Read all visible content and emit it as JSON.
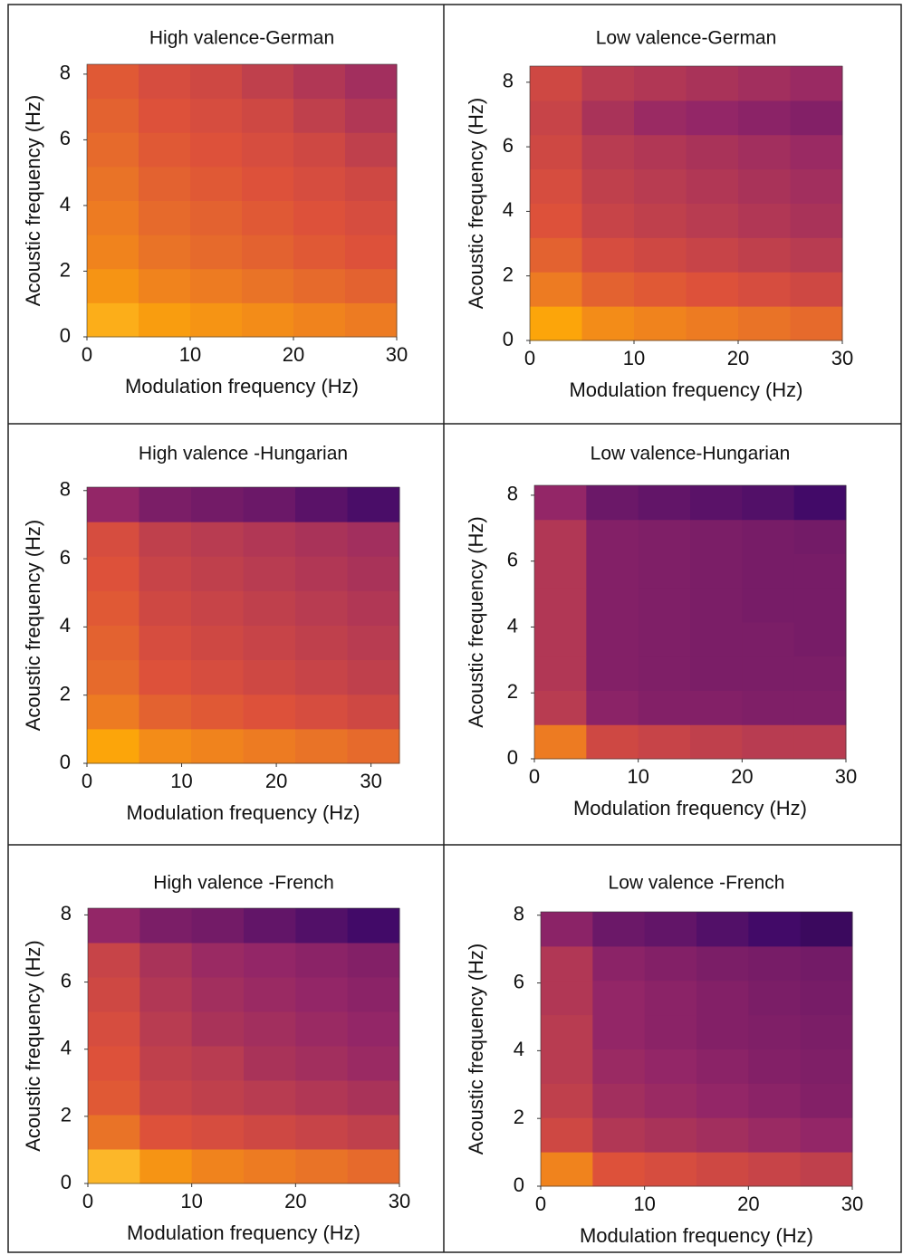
{
  "chart_data": [
    {
      "type": "heatmap",
      "title": "High valence-German",
      "xlabel": "Modulation frequency (Hz)",
      "ylabel": "Acoustic frequency (Hz)",
      "xlim": [
        0,
        30
      ],
      "ylim": [
        0,
        8.3
      ],
      "xticks": [
        0,
        10,
        20,
        30
      ],
      "yticks": [
        0,
        2,
        4,
        6,
        8
      ],
      "zlim": [
        0,
        1
      ],
      "colorscale": [
        "#000004",
        "#420a68",
        "#932667",
        "#dd513a",
        "#fca50a",
        "#fcffa4"
      ],
      "z": [
        [
          0.82,
          0.78,
          0.76,
          0.74,
          0.72,
          0.7
        ],
        [
          0.76,
          0.72,
          0.7,
          0.68,
          0.66,
          0.64
        ],
        [
          0.72,
          0.68,
          0.66,
          0.64,
          0.62,
          0.6
        ],
        [
          0.7,
          0.66,
          0.64,
          0.62,
          0.6,
          0.58
        ],
        [
          0.68,
          0.64,
          0.62,
          0.6,
          0.58,
          0.56
        ],
        [
          0.66,
          0.62,
          0.6,
          0.58,
          0.56,
          0.52
        ],
        [
          0.64,
          0.6,
          0.58,
          0.56,
          0.52,
          0.48
        ],
        [
          0.62,
          0.58,
          0.56,
          0.52,
          0.48,
          0.44
        ]
      ]
    },
    {
      "type": "heatmap",
      "title": "Low valence-German",
      "xlabel": "Modulation frequency (Hz)",
      "ylabel": "Acoustic frequency (Hz)",
      "xlim": [
        0,
        30
      ],
      "ylim": [
        0,
        8.5
      ],
      "xticks": [
        0,
        10,
        20,
        30
      ],
      "yticks": [
        0,
        2,
        4,
        6,
        8
      ],
      "zlim": [
        0,
        1
      ],
      "colorscale": [
        "#000004",
        "#420a68",
        "#932667",
        "#dd513a",
        "#fca50a",
        "#fcffa4"
      ],
      "z": [
        [
          0.8,
          0.74,
          0.72,
          0.7,
          0.68,
          0.66
        ],
        [
          0.7,
          0.64,
          0.62,
          0.6,
          0.58,
          0.56
        ],
        [
          0.64,
          0.58,
          0.56,
          0.54,
          0.52,
          0.5
        ],
        [
          0.6,
          0.54,
          0.52,
          0.5,
          0.48,
          0.46
        ],
        [
          0.58,
          0.52,
          0.5,
          0.48,
          0.46,
          0.44
        ],
        [
          0.56,
          0.5,
          0.48,
          0.46,
          0.44,
          0.42
        ],
        [
          0.54,
          0.46,
          0.42,
          0.4,
          0.38,
          0.36
        ],
        [
          0.56,
          0.5,
          0.48,
          0.46,
          0.44,
          0.42
        ]
      ]
    },
    {
      "type": "heatmap",
      "title": "High valence -Hungarian",
      "xlabel": "Modulation frequency (Hz)",
      "ylabel": "Acoustic frequency (Hz)",
      "xlim": [
        0,
        33
      ],
      "ylim": [
        0,
        8.1
      ],
      "xticks": [
        0,
        10,
        20,
        30
      ],
      "yticks": [
        0,
        2,
        4,
        6,
        8
      ],
      "zlim": [
        0,
        1
      ],
      "colorscale": [
        "#000004",
        "#420a68",
        "#932667",
        "#dd513a",
        "#fca50a",
        "#fcffa4"
      ],
      "z": [
        [
          0.8,
          0.74,
          0.72,
          0.7,
          0.68,
          0.66
        ],
        [
          0.7,
          0.64,
          0.62,
          0.6,
          0.58,
          0.56
        ],
        [
          0.66,
          0.6,
          0.58,
          0.56,
          0.54,
          0.52
        ],
        [
          0.64,
          0.58,
          0.56,
          0.54,
          0.52,
          0.5
        ],
        [
          0.62,
          0.56,
          0.54,
          0.52,
          0.5,
          0.48
        ],
        [
          0.6,
          0.54,
          0.52,
          0.5,
          0.48,
          0.46
        ],
        [
          0.58,
          0.52,
          0.5,
          0.48,
          0.46,
          0.44
        ],
        [
          0.4,
          0.34,
          0.32,
          0.3,
          0.26,
          0.22
        ]
      ]
    },
    {
      "type": "heatmap",
      "title": "Low valence-Hungarian",
      "xlabel": "Modulation frequency (Hz)",
      "ylabel": "Acoustic frequency (Hz)",
      "xlim": [
        0,
        30
      ],
      "ylim": [
        0,
        8.3
      ],
      "xticks": [
        0,
        10,
        20,
        30
      ],
      "yticks": [
        0,
        2,
        4,
        6,
        8
      ],
      "zlim": [
        0,
        1
      ],
      "colorscale": [
        "#000004",
        "#420a68",
        "#932667",
        "#dd513a",
        "#fca50a",
        "#fcffa4"
      ],
      "z": [
        [
          0.7,
          0.56,
          0.54,
          0.52,
          0.5,
          0.5
        ],
        [
          0.5,
          0.38,
          0.36,
          0.36,
          0.35,
          0.35
        ],
        [
          0.48,
          0.36,
          0.35,
          0.34,
          0.34,
          0.34
        ],
        [
          0.48,
          0.36,
          0.35,
          0.34,
          0.34,
          0.33
        ],
        [
          0.48,
          0.36,
          0.35,
          0.34,
          0.33,
          0.33
        ],
        [
          0.48,
          0.36,
          0.35,
          0.34,
          0.33,
          0.33
        ],
        [
          0.48,
          0.36,
          0.35,
          0.34,
          0.33,
          0.32
        ],
        [
          0.4,
          0.3,
          0.28,
          0.26,
          0.24,
          0.2
        ]
      ]
    },
    {
      "type": "heatmap",
      "title": "High valence -French",
      "xlabel": "Modulation frequency (Hz)",
      "ylabel": "Acoustic frequency (Hz)",
      "xlim": [
        0,
        30
      ],
      "ylim": [
        0,
        8.2
      ],
      "xticks": [
        0,
        10,
        20,
        30
      ],
      "yticks": [
        0,
        2,
        4,
        6,
        8
      ],
      "zlim": [
        0,
        1
      ],
      "colorscale": [
        "#000004",
        "#420a68",
        "#932667",
        "#dd513a",
        "#fca50a",
        "#fcffa4"
      ],
      "z": [
        [
          0.84,
          0.76,
          0.72,
          0.7,
          0.68,
          0.66
        ],
        [
          0.68,
          0.6,
          0.58,
          0.56,
          0.54,
          0.52
        ],
        [
          0.62,
          0.54,
          0.52,
          0.5,
          0.48,
          0.46
        ],
        [
          0.6,
          0.52,
          0.5,
          0.46,
          0.44,
          0.42
        ],
        [
          0.58,
          0.5,
          0.46,
          0.44,
          0.42,
          0.4
        ],
        [
          0.56,
          0.48,
          0.44,
          0.42,
          0.4,
          0.38
        ],
        [
          0.54,
          0.46,
          0.42,
          0.4,
          0.38,
          0.36
        ],
        [
          0.4,
          0.34,
          0.32,
          0.28,
          0.24,
          0.2
        ]
      ]
    },
    {
      "type": "heatmap",
      "title": "Low valence -French",
      "xlabel": "Modulation frequency (Hz)",
      "ylabel": "Acoustic frequency (Hz)",
      "xlim": [
        0,
        30
      ],
      "ylim": [
        0,
        8.1
      ],
      "xticks": [
        0,
        10,
        20,
        30
      ],
      "yticks": [
        0,
        2,
        4,
        6,
        8
      ],
      "zlim": [
        0,
        1
      ],
      "colorscale": [
        "#000004",
        "#420a68",
        "#932667",
        "#dd513a",
        "#fca50a",
        "#fcffa4"
      ],
      "z": [
        [
          0.72,
          0.6,
          0.58,
          0.56,
          0.54,
          0.52
        ],
        [
          0.56,
          0.48,
          0.46,
          0.44,
          0.42,
          0.4
        ],
        [
          0.52,
          0.44,
          0.42,
          0.4,
          0.38,
          0.36
        ],
        [
          0.5,
          0.42,
          0.4,
          0.38,
          0.36,
          0.35
        ],
        [
          0.5,
          0.4,
          0.38,
          0.36,
          0.35,
          0.34
        ],
        [
          0.48,
          0.4,
          0.38,
          0.36,
          0.34,
          0.33
        ],
        [
          0.48,
          0.38,
          0.36,
          0.34,
          0.33,
          0.32
        ],
        [
          0.38,
          0.3,
          0.28,
          0.24,
          0.2,
          0.18
        ]
      ]
    }
  ]
}
